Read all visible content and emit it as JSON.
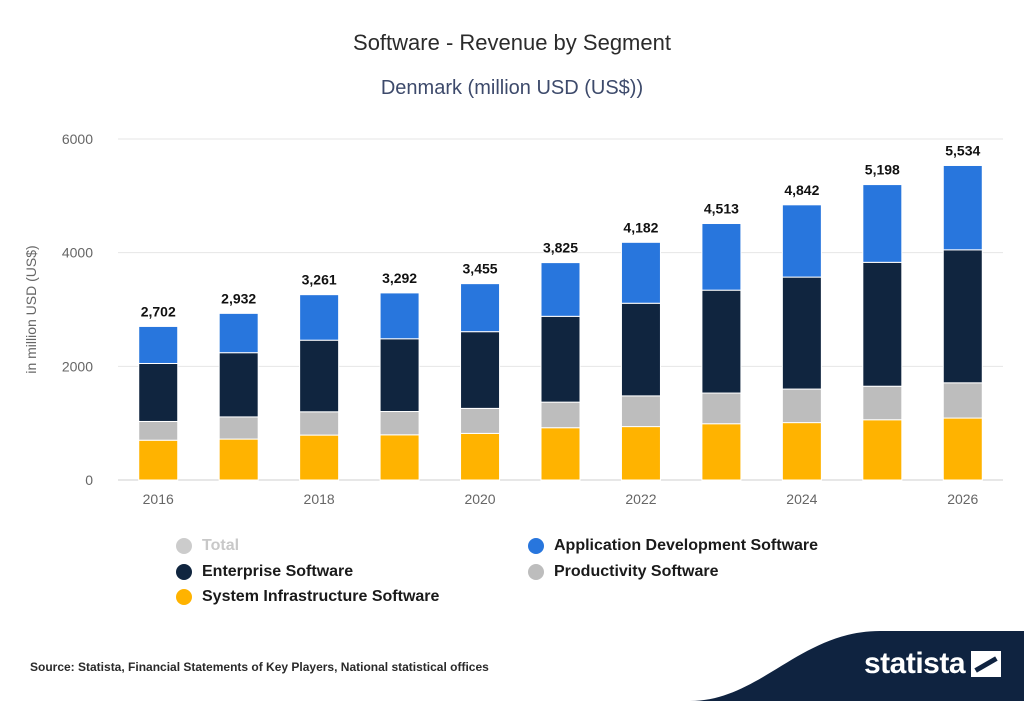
{
  "chart_data": {
    "type": "bar",
    "stacked": true,
    "title": "Software - Revenue by Segment",
    "subtitle": "Denmark (million USD (US$))",
    "ylabel": "in million USD (US$)",
    "xlabel": "",
    "ylim": [
      0,
      6000
    ],
    "yticks": [
      0,
      2000,
      4000,
      6000
    ],
    "xtick_labels": [
      "2016",
      "2018",
      "2020",
      "2022",
      "2024",
      "2026"
    ],
    "categories": [
      "2016",
      "2017",
      "2018",
      "2019",
      "2020",
      "2021",
      "2022",
      "2023",
      "2024",
      "2025",
      "2026"
    ],
    "totals": [
      2702,
      2932,
      3261,
      3292,
      3455,
      3825,
      4182,
      4513,
      4842,
      5198,
      5534
    ],
    "total_labels": [
      "2,702",
      "2,932",
      "3,261",
      "3,292",
      "3,455",
      "3,825",
      "4,182",
      "4,513",
      "4,842",
      "5,198",
      "5,534"
    ],
    "series": [
      {
        "name": "System Infrastructure Software",
        "color": "#ffb300",
        "values": [
          700,
          720,
          790,
          795,
          820,
          920,
          940,
          990,
          1010,
          1060,
          1090
        ]
      },
      {
        "name": "Productivity Software",
        "color": "#bdbdbd",
        "values": [
          330,
          390,
          410,
          410,
          440,
          450,
          540,
          540,
          590,
          590,
          620
        ]
      },
      {
        "name": "Enterprise Software",
        "color": "#10253f",
        "values": [
          1020,
          1130,
          1260,
          1280,
          1350,
          1510,
          1630,
          1810,
          1970,
          2180,
          2340
        ]
      },
      {
        "name": "Application Development Software",
        "color": "#2876dd",
        "values": [
          652,
          692,
          801,
          807,
          845,
          945,
          1072,
          1173,
          1272,
          1368,
          1484
        ]
      }
    ],
    "grid": true,
    "legend_position": "bottom"
  },
  "legend": {
    "total": {
      "label": "Total",
      "color": "#cccccc"
    },
    "app_dev": {
      "label": "Application Development Software",
      "color": "#2876dd"
    },
    "enterprise": {
      "label": "Enterprise Software",
      "color": "#10253f"
    },
    "productivity": {
      "label": "Productivity Software",
      "color": "#bdbdbd"
    },
    "system_infra": {
      "label": "System Infrastructure Software",
      "color": "#ffb300"
    }
  },
  "footer": {
    "source": "Source: Statista, Financial Statements of Key Players, National statistical offices",
    "brand": "statista"
  }
}
